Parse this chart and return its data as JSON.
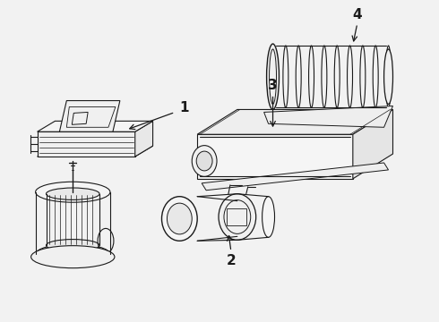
{
  "background_color": "#f2f2f2",
  "line_color": "#1a1a1a",
  "figsize": [
    4.9,
    3.6
  ],
  "dpi": 100
}
